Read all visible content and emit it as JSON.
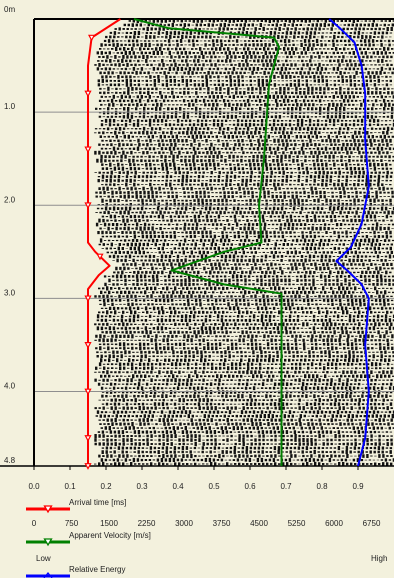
{
  "chart_data": {
    "type": "line",
    "depth_axis": {
      "range": [
        0,
        4.8
      ],
      "tick_labels": [
        {
          "value": 0,
          "label": "0m"
        },
        {
          "value": 1.0,
          "label": "1.0"
        },
        {
          "value": 2.0,
          "label": "2.0"
        },
        {
          "value": 3.0,
          "label": "3.0"
        },
        {
          "value": 4.0,
          "label": "4.0"
        },
        {
          "value": 4.8,
          "label": "4.8"
        }
      ]
    },
    "grid": true,
    "wiggle_background": true,
    "arrival_axis": {
      "label": "Arrival time [ms]",
      "range": [
        0,
        1.0
      ],
      "ticks": [
        "0.0",
        "0.1",
        "0.2",
        "0.3",
        "0.4",
        "0.5",
        "0.6",
        "0.7",
        "0.8",
        "0.9"
      ]
    },
    "velocity_axis": {
      "label": "Apparent Velocity [m/s]",
      "range": [
        0,
        7200
      ],
      "ticks": [
        "0",
        "750",
        "1500",
        "2250",
        "3000",
        "3750",
        "4500",
        "5250",
        "6000",
        "6750"
      ]
    },
    "energy_axis": {
      "label": "Relative Energy",
      "low_label": "Low",
      "high_label": "High"
    },
    "series": [
      {
        "name": "Arrival time [ms]",
        "color": "#ff0000",
        "marker": "triangle-down",
        "points": [
          [
            0.0,
            0.24
          ],
          [
            0.2,
            0.16
          ],
          [
            0.5,
            0.15
          ],
          [
            1.0,
            0.15
          ],
          [
            1.5,
            0.15
          ],
          [
            2.0,
            0.15
          ],
          [
            2.4,
            0.15
          ],
          [
            2.5,
            0.17
          ],
          [
            2.65,
            0.21
          ],
          [
            2.75,
            0.18
          ],
          [
            2.9,
            0.15
          ],
          [
            3.5,
            0.15
          ],
          [
            4.0,
            0.15
          ],
          [
            4.5,
            0.15
          ],
          [
            4.8,
            0.15
          ]
        ],
        "markers_at": [
          0.2,
          0.8,
          1.4,
          2.0,
          2.55,
          3.0,
          3.5,
          4.0,
          4.5,
          4.8
        ]
      },
      {
        "name": "Apparent Velocity [m/s]",
        "color": "#008000",
        "marker": "triangle-down",
        "points": [
          [
            0.0,
            2000
          ],
          [
            0.1,
            2700
          ],
          [
            0.2,
            4800
          ],
          [
            0.3,
            4900
          ],
          [
            0.7,
            4700
          ],
          [
            1.5,
            4600
          ],
          [
            2.0,
            4500
          ],
          [
            2.4,
            4550
          ],
          [
            2.5,
            3800
          ],
          [
            2.7,
            2750
          ],
          [
            2.85,
            3800
          ],
          [
            2.95,
            4950
          ],
          [
            3.5,
            4950
          ],
          [
            4.0,
            4950
          ],
          [
            4.8,
            4950
          ]
        ]
      },
      {
        "name": "Relative Energy",
        "color": "#0000ff",
        "points": [
          [
            0.0,
            0.82
          ],
          [
            0.1,
            0.85
          ],
          [
            0.25,
            0.89
          ],
          [
            0.5,
            0.91
          ],
          [
            0.8,
            0.92
          ],
          [
            1.3,
            0.92
          ],
          [
            1.8,
            0.93
          ],
          [
            2.2,
            0.91
          ],
          [
            2.45,
            0.88
          ],
          [
            2.6,
            0.84
          ],
          [
            2.7,
            0.87
          ],
          [
            2.85,
            0.91
          ],
          [
            3.0,
            0.93
          ],
          [
            3.5,
            0.92
          ],
          [
            4.0,
            0.93
          ],
          [
            4.5,
            0.92
          ],
          [
            4.8,
            0.9
          ]
        ]
      }
    ]
  }
}
